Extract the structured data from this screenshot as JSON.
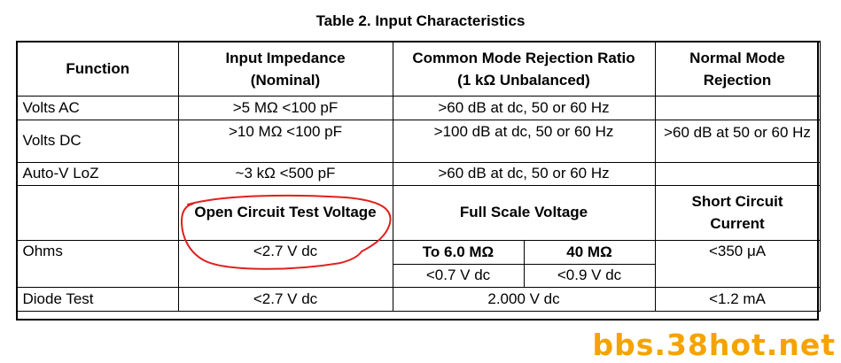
{
  "title": "Table 2. Input Characteristics",
  "headers": {
    "function": "Function",
    "input_impedance": [
      "Input Impedance",
      "(Nominal)"
    ],
    "cmrr": [
      "Common Mode Rejection Ratio",
      "(1 kΩ Unbalanced)"
    ],
    "nmr": [
      "Normal Mode",
      "Rejection"
    ]
  },
  "rows": {
    "volts_ac": {
      "function": "Volts AC",
      "impedance": ">5 MΩ <100 pF",
      "cmrr": ">60 dB at dc, 50 or 60 Hz",
      "nmr": ""
    },
    "volts_dc": {
      "function": "Volts DC",
      "impedance": ">10 MΩ <100 pF",
      "cmrr": ">100 dB at dc, 50 or 60 Hz",
      "nmr": ">60 dB at 50 or 60 Hz"
    },
    "auto_v": {
      "function": "Auto-V LoZ",
      "impedance": "~3 kΩ <500 pF",
      "cmrr": ">60 dB at dc, 50 or 60 Hz",
      "nmr": ""
    }
  },
  "subheaders": {
    "open_circuit": "Open Circuit Test Voltage",
    "full_scale": "Full Scale Voltage",
    "short_circuit": [
      "Short Circuit",
      "Current"
    ]
  },
  "ohms": {
    "function": "Ohms",
    "open_circuit": "<2.7 V dc",
    "range1_label": "To 6.0 MΩ",
    "range2_label": "40 MΩ",
    "range1_value": "<0.7 V dc",
    "range2_value": "<0.9 V dc",
    "short_circuit": "<350 μA"
  },
  "diode": {
    "function": "Diode Test",
    "open_circuit": "<2.7 V dc",
    "full_scale": "2.000 V dc",
    "short_circuit": "<1.2 mA"
  },
  "watermark": "bbs.38hot.net",
  "colors": {
    "annotation": "#e0201c",
    "watermark": "#f5a300"
  }
}
